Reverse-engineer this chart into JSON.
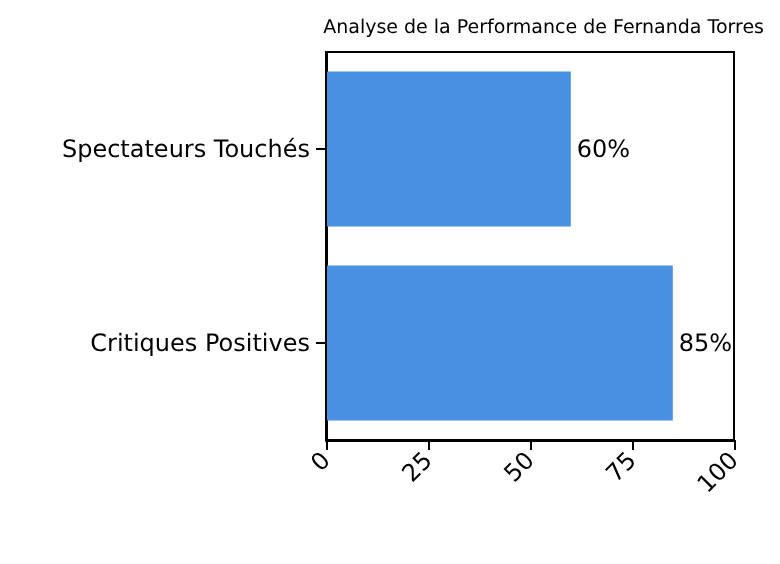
{
  "chart_data": {
    "type": "bar",
    "orientation": "horizontal",
    "title": "Analyse de la Performance de Fernanda Torres",
    "categories": [
      "Spectateurs Touchés",
      "Critiques Positives"
    ],
    "values": [
      60,
      85
    ],
    "value_labels": [
      "60%",
      "85%"
    ],
    "color": "#4a90e2",
    "xlim": [
      0,
      100
    ],
    "xticks": [
      0,
      25,
      50,
      75,
      100
    ],
    "grid": false
  }
}
